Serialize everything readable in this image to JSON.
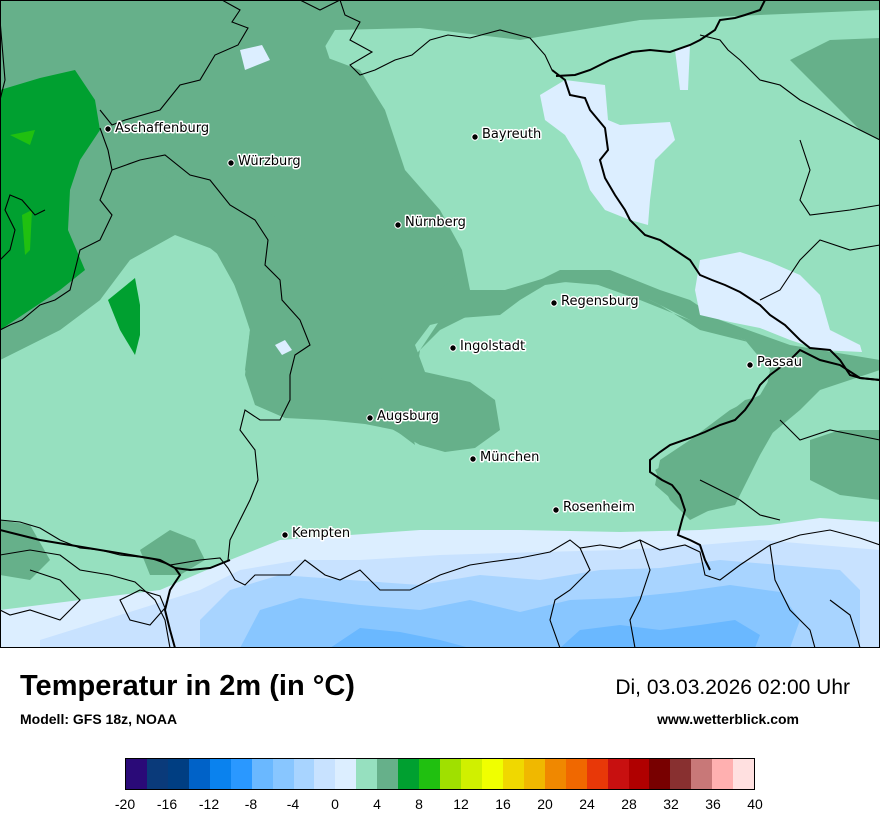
{
  "map": {
    "cities": [
      {
        "name": "Aschaffenburg"
      },
      {
        "name": "Bayreuth"
      },
      {
        "name": "Würzburg"
      },
      {
        "name": "Nürnberg"
      },
      {
        "name": "Regensburg"
      },
      {
        "name": "Ingolstadt"
      },
      {
        "name": "Passau"
      },
      {
        "name": "Augsburg"
      },
      {
        "name": "München"
      },
      {
        "name": "Rosenheim"
      },
      {
        "name": "Kempten"
      }
    ]
  },
  "footer": {
    "title": "Temperatur in 2m (in °C)",
    "model": "Modell: GFS 18z, NOAA",
    "datetime": "Di, 03.03.2026 02:00 Uhr",
    "site": "www.wetterblick.com"
  },
  "legend": {
    "colors": [
      "#2a0a78",
      "#0a3a7a",
      "#003e82",
      "#0062c8",
      "#0a82ee",
      "#2a98ff",
      "#6ab8ff",
      "#88c6ff",
      "#a8d4ff",
      "#c8e2ff",
      "#dceeff",
      "#96e0bf",
      "#66b08a",
      "#00a030",
      "#20c010",
      "#a0e000",
      "#d0f000",
      "#f0ff00",
      "#f0d800",
      "#f0b800",
      "#f08800",
      "#f06800",
      "#e83808",
      "#c81010",
      "#b00000",
      "#780000",
      "#883030",
      "#c87878",
      "#ffb0b0",
      "#ffe0e0"
    ],
    "ticks": [
      "-20",
      "-16",
      "-12",
      "-8",
      "-4",
      "0",
      "4",
      "8",
      "12",
      "16",
      "20",
      "24",
      "28",
      "32",
      "36",
      "40"
    ],
    "range": [
      -20,
      40
    ]
  }
}
